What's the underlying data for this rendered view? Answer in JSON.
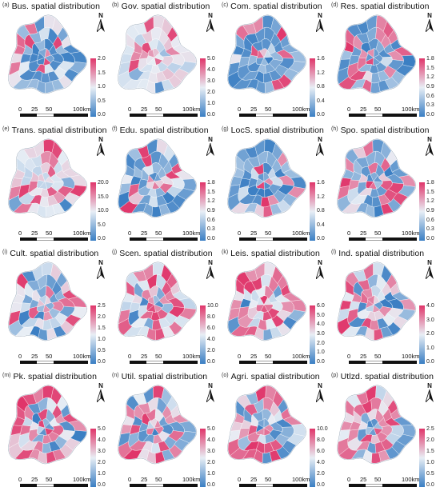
{
  "colors": {
    "blue": "#3a7ec3",
    "light": "#e8eef5",
    "pink": "#e0356a"
  },
  "north_label": "N",
  "scale_labels": [
    "0",
    "25",
    "50",
    "100km"
  ],
  "panels": [
    {
      "letter": "(a)",
      "name": "Bus. spatial distribution",
      "ticks": [
        "2.0",
        "1.5",
        "1.0",
        "0.5",
        "0.0"
      ],
      "pink": 0.28,
      "blue": 0.55
    },
    {
      "letter": "(b)",
      "name": "Gov. spatial distribution",
      "ticks": [
        "5.0",
        "4.0",
        "3.0",
        "2.0",
        "1.0",
        "0.0"
      ],
      "pink": 0.15,
      "blue": 0.05
    },
    {
      "letter": "(c)",
      "name": "Com. spatial distribution",
      "ticks": [
        "1.6",
        "1.2",
        "0.8",
        "0.4",
        "0.0"
      ],
      "pink": 0.2,
      "blue": 0.7
    },
    {
      "letter": "(d)",
      "name": "Res. spatial distribution",
      "ticks": [
        "1.8",
        "1.5",
        "1.2",
        "0.9",
        "0.6",
        "0.3",
        "0.0"
      ],
      "pink": 0.35,
      "blue": 0.55
    },
    {
      "letter": "(e)",
      "name": "Trans. spatial distribution",
      "ticks": [
        "20.0",
        "15.0",
        "10.0",
        "5.0",
        "0.0"
      ],
      "pink": 0.3,
      "blue": 0.05
    },
    {
      "letter": "(f)",
      "name": "Edu. spatial distribution",
      "ticks": [
        "1.8",
        "1.5",
        "1.2",
        "0.9",
        "0.6",
        "0.3",
        "0.0"
      ],
      "pink": 0.15,
      "blue": 0.65
    },
    {
      "letter": "(g)",
      "name": "LocS. spatial distribution",
      "ticks": [
        "1.6",
        "1.2",
        "0.8",
        "0.4",
        "0.0"
      ],
      "pink": 0.2,
      "blue": 0.65
    },
    {
      "letter": "(h)",
      "name": "Spo. spatial distribution",
      "ticks": [
        "1.8",
        "1.5",
        "1.2",
        "0.9",
        "0.6",
        "0.3",
        "0.0"
      ],
      "pink": 0.3,
      "blue": 0.55
    },
    {
      "letter": "(i)",
      "name": "Cult. spatial distribution",
      "ticks": [
        "2.5",
        "2.0",
        "1.5",
        "1.0",
        "0.5",
        "0.0"
      ],
      "pink": 0.2,
      "blue": 0.5
    },
    {
      "letter": "(j)",
      "name": "Scen. spatial distribution",
      "ticks": [
        "10.0",
        "8.0",
        "6.0",
        "4.0",
        "2.0",
        "0.0"
      ],
      "pink": 0.5,
      "blue": 0.15
    },
    {
      "letter": "(k)",
      "name": "Leis. spatial distribution",
      "ticks": [
        "6.0",
        "5.0",
        "4.0",
        "3.0",
        "2.0",
        "1.0",
        "0.0"
      ],
      "pink": 0.45,
      "blue": 0.15
    },
    {
      "letter": "(l)",
      "name": "Ind. spatial distribution",
      "ticks": [
        "4.0",
        "3.0",
        "2.0",
        "1.0",
        "0.0"
      ],
      "pink": 0.45,
      "blue": 0.3
    },
    {
      "letter": "(m)",
      "name": "Pk. spatial distribution",
      "ticks": [
        "5.0",
        "4.0",
        "3.0",
        "2.0",
        "1.0",
        "0.0"
      ],
      "pink": 0.45,
      "blue": 0.25
    },
    {
      "letter": "(n)",
      "name": "Util. spatial distribution",
      "ticks": [
        "5.0",
        "4.0",
        "3.0",
        "2.0",
        "1.0",
        "0.0"
      ],
      "pink": 0.45,
      "blue": 0.3
    },
    {
      "letter": "(o)",
      "name": "Agri. spatial distribution",
      "ticks": [
        "10.0",
        "8.0",
        "6.0",
        "4.0",
        "2.0",
        "0.0"
      ],
      "pink": 0.45,
      "blue": 0.25
    },
    {
      "letter": "(p)",
      "name": "Utlzd. spatial distribution",
      "ticks": [
        "2.5",
        "2.0",
        "1.5",
        "1.0",
        "0.5",
        "0.0"
      ],
      "pink": 0.5,
      "blue": 0.25
    }
  ]
}
